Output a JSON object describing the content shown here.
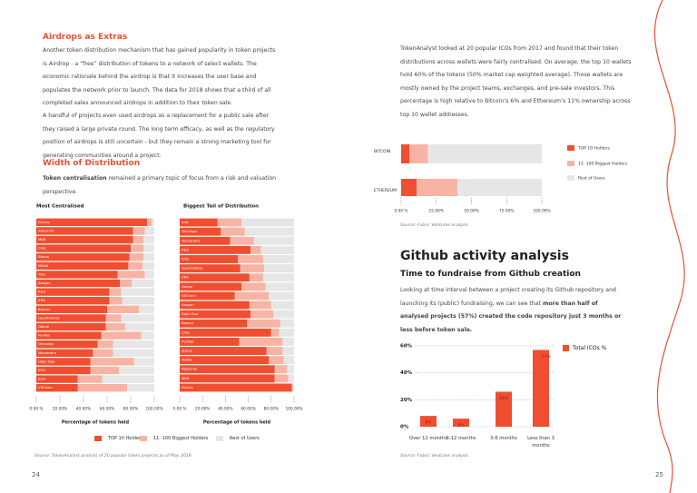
{
  "document": {
    "left": {
      "heading1": "Airdrops as Extras",
      "para1": "Another token distribution mechanism that has gained popularity in token projects is Airdrop - a “free” distribution of tokens to a network of select wallets. The economic rationale behind the airdrop is that it increases the user base and populates the network prior to launch. The data for 2018 shows that a third of all completed sales announced airdrops in addition to their token sale.",
      "para2": "A handful of projects even used airdrops as a replacement for a public sale after they raised a large private round. The long term efficacy, as well as the regulatory position of airdrops is still uncertain - but they remain a strong marketing tool for generating communities around a project.",
      "heading2": "Width of Distribution",
      "para3": [
        "Token centralisation",
        " remained a primary topic of focus from a risk and valuation perspective."
      ],
      "source": "Source: TokenAnalyst analysis of 20 popular token projects as of May 2018",
      "page": "24"
    },
    "right": {
      "para1": "TokenAnalyst looked at 20 popular ICOs from 2017 and found that their token distributions across wallets were fairly centralised. On average, the top 10 wallets hold 60% of the tokens (50% market cap weighted average). Those wallets are mostly owned by the project teams, exchanges, and pre-sale investors. This percentage is high relative to Bitcoin’s 6% and Ethereum’s 11% ownership across top 10 wallet addresses.",
      "source1": "Source: Fabric Ventures analysis",
      "heading": "Github activity analysis",
      "subheading": "Time to fundraise from Github creation",
      "para2": [
        "Looking at time interval between a project creating its Github repository and launching its (public) fundraising, we can see that ",
        "more than half of analysed projects (57%) created the code repository just 3 months or less before token sale."
      ],
      "source2": "Source: Fabric Ventures analysis",
      "page": "25"
    }
  },
  "chart_data": [
    {
      "type": "stacked-hbar",
      "title": "Most Centralised",
      "xlabel": "Percentage of tokens held",
      "categories": [
        "Gnosis",
        "Aeternity",
        "MKR",
        "Civic",
        "Status",
        "MANA",
        "Tron",
        "Aragon",
        "REQ",
        "ZRX",
        "Bancor",
        "Quantstamp",
        "Golem",
        "FunFair",
        "Omisego",
        "Numeraire",
        "Digix Dao",
        "EOS",
        "Icon",
        "VXChain"
      ],
      "series": [
        {
          "name": "TOP 10 Holders",
          "color": "#f04e30",
          "values": [
            94,
            82,
            82,
            80,
            79,
            78,
            69,
            71,
            62,
            62,
            60,
            59,
            59,
            55,
            52,
            48,
            46,
            46,
            35,
            35
          ]
        },
        {
          "name": "11- 100 Biggest  Holders",
          "color": "#f7b4a4",
          "values": [
            4,
            10,
            9,
            11,
            12,
            12,
            23,
            10,
            10,
            11,
            27,
            13,
            16,
            34,
            13,
            17,
            37,
            24,
            21,
            42
          ]
        },
        {
          "name": "Rest of Users",
          "color": "#e6e6e6",
          "values": [
            2,
            8,
            9,
            9,
            9,
            10,
            8,
            19,
            28,
            27,
            13,
            28,
            25,
            11,
            35,
            35,
            17,
            30,
            44,
            23
          ]
        }
      ],
      "xlim": [
        0,
        100
      ],
      "xticks": [
        {
          "value": 0,
          "label": "0.00 %"
        },
        {
          "value": 20,
          "label": "20.00%"
        },
        {
          "value": 40,
          "label": "40.00%"
        },
        {
          "value": 60,
          "label": "60.00%"
        },
        {
          "value": 80,
          "label": "80.00%"
        },
        {
          "value": 100,
          "label": "100.00%"
        }
      ]
    },
    {
      "type": "stacked-hbar",
      "title": "Biggest Tail of Distribution",
      "xlabel": "Percentage of tokens held",
      "categories": [
        "Icon",
        "Omisego",
        "Numeraire",
        "REQ",
        "EOS",
        "Quantstamp",
        "ZRX",
        "Golem",
        "VXChain",
        "Aragon",
        "Digix Dao",
        "Bancor",
        "Civic",
        "FunFair",
        "Status",
        "MANA",
        "Aeternity",
        "MKR",
        "Gnosis"
      ],
      "series": [
        {
          "color": "#f04e30",
          "values": [
            33,
            36,
            44,
            62,
            51,
            53,
            61,
            54,
            48,
            61,
            62,
            59,
            80,
            52,
            76,
            78,
            83,
            83,
            98
          ]
        },
        {
          "color": "#f7b4a4",
          "values": [
            21,
            21,
            21,
            9,
            22,
            21,
            12,
            21,
            30,
            19,
            20,
            29,
            7,
            38,
            14,
            13,
            11,
            12,
            1
          ]
        },
        {
          "color": "#e6e6e6",
          "values": [
            46,
            43,
            35,
            29,
            27,
            26,
            27,
            25,
            22,
            20,
            18,
            12,
            13,
            10,
            10,
            9,
            6,
            5,
            1
          ]
        }
      ],
      "xlim": [
        0,
        100
      ],
      "xticks": [
        {
          "value": 0,
          "label": "0.00 %"
        },
        {
          "value": 20,
          "label": "20.00%"
        },
        {
          "value": 40,
          "label": "40.00%"
        },
        {
          "value": 60,
          "label": "60.00%"
        },
        {
          "value": 80,
          "label": "80.00%"
        },
        {
          "value": 100,
          "label": "100.00%"
        }
      ]
    },
    {
      "type": "stacked-hbar",
      "categories": [
        "BITCOIN",
        "ETHEREUM"
      ],
      "series": [
        {
          "name": "TOP 10 Holders",
          "color": "#f04e30",
          "values": [
            6,
            11
          ]
        },
        {
          "name": "11- 100 Biggest  Holders",
          "color": "#f7b4a4",
          "values": [
            13,
            29
          ]
        },
        {
          "name": "Rest of Users",
          "color": "#e6e6e6",
          "values": [
            81,
            60
          ]
        }
      ],
      "legend": "right",
      "xlim": [
        0,
        100
      ],
      "xticks": [
        {
          "value": 0,
          "label": "0.00 %"
        },
        {
          "value": 25,
          "label": "25.00%"
        },
        {
          "value": 50,
          "label": "50.00%"
        },
        {
          "value": 75,
          "label": "75.00%"
        },
        {
          "value": 100,
          "label": "100.00%"
        }
      ]
    },
    {
      "type": "bar",
      "categories": [
        "Over 12 months",
        "6-12 months",
        "3-6 months",
        "Less than 3 months"
      ],
      "series": [
        {
          "name": "Total ICOs %",
          "color": "#f04e30",
          "values": [
            8,
            6,
            26,
            57
          ],
          "value_labels": [
            "8%",
            "6%",
            "26%",
            "57%"
          ]
        }
      ],
      "legend": "right",
      "ylim": [
        0,
        60
      ],
      "yticks": [
        {
          "value": 0,
          "label": "0%"
        },
        {
          "value": 20,
          "label": "20%"
        },
        {
          "value": 40,
          "label": "40%"
        },
        {
          "value": 60,
          "label": "60%"
        }
      ],
      "grid": true
    }
  ]
}
